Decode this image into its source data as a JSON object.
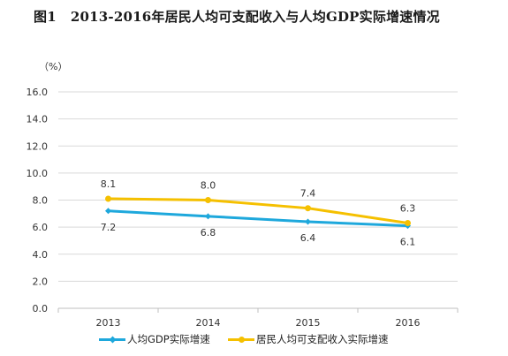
{
  "title": {
    "figure_label": "图1",
    "text": "2013-2016年居民人均可支配收入与人均GDP实际增速情况"
  },
  "chart_data": {
    "type": "line",
    "unit_label": "（%）",
    "categories": [
      "2013",
      "2014",
      "2015",
      "2016"
    ],
    "ylim": [
      0,
      16
    ],
    "yticks": [
      "0.0",
      "2.0",
      "4.0",
      "6.0",
      "8.0",
      "10.0",
      "12.0",
      "14.0",
      "16.0"
    ],
    "grid": true,
    "legend_position": "bottom",
    "series": [
      {
        "name": "人均GDP实际增速",
        "values": [
          7.2,
          6.8,
          6.4,
          6.1
        ],
        "labels": [
          "7.2",
          "6.8",
          "6.4",
          "6.1"
        ],
        "label_position": "below",
        "color": "#1ea8dc",
        "marker": "diamond"
      },
      {
        "name": "居民人均可支配收入实际增速",
        "values": [
          8.1,
          8.0,
          7.4,
          6.3
        ],
        "labels": [
          "8.1",
          "8.0",
          "7.4",
          "6.3"
        ],
        "label_position": "above",
        "color": "#f5c000",
        "marker": "circle"
      }
    ]
  }
}
